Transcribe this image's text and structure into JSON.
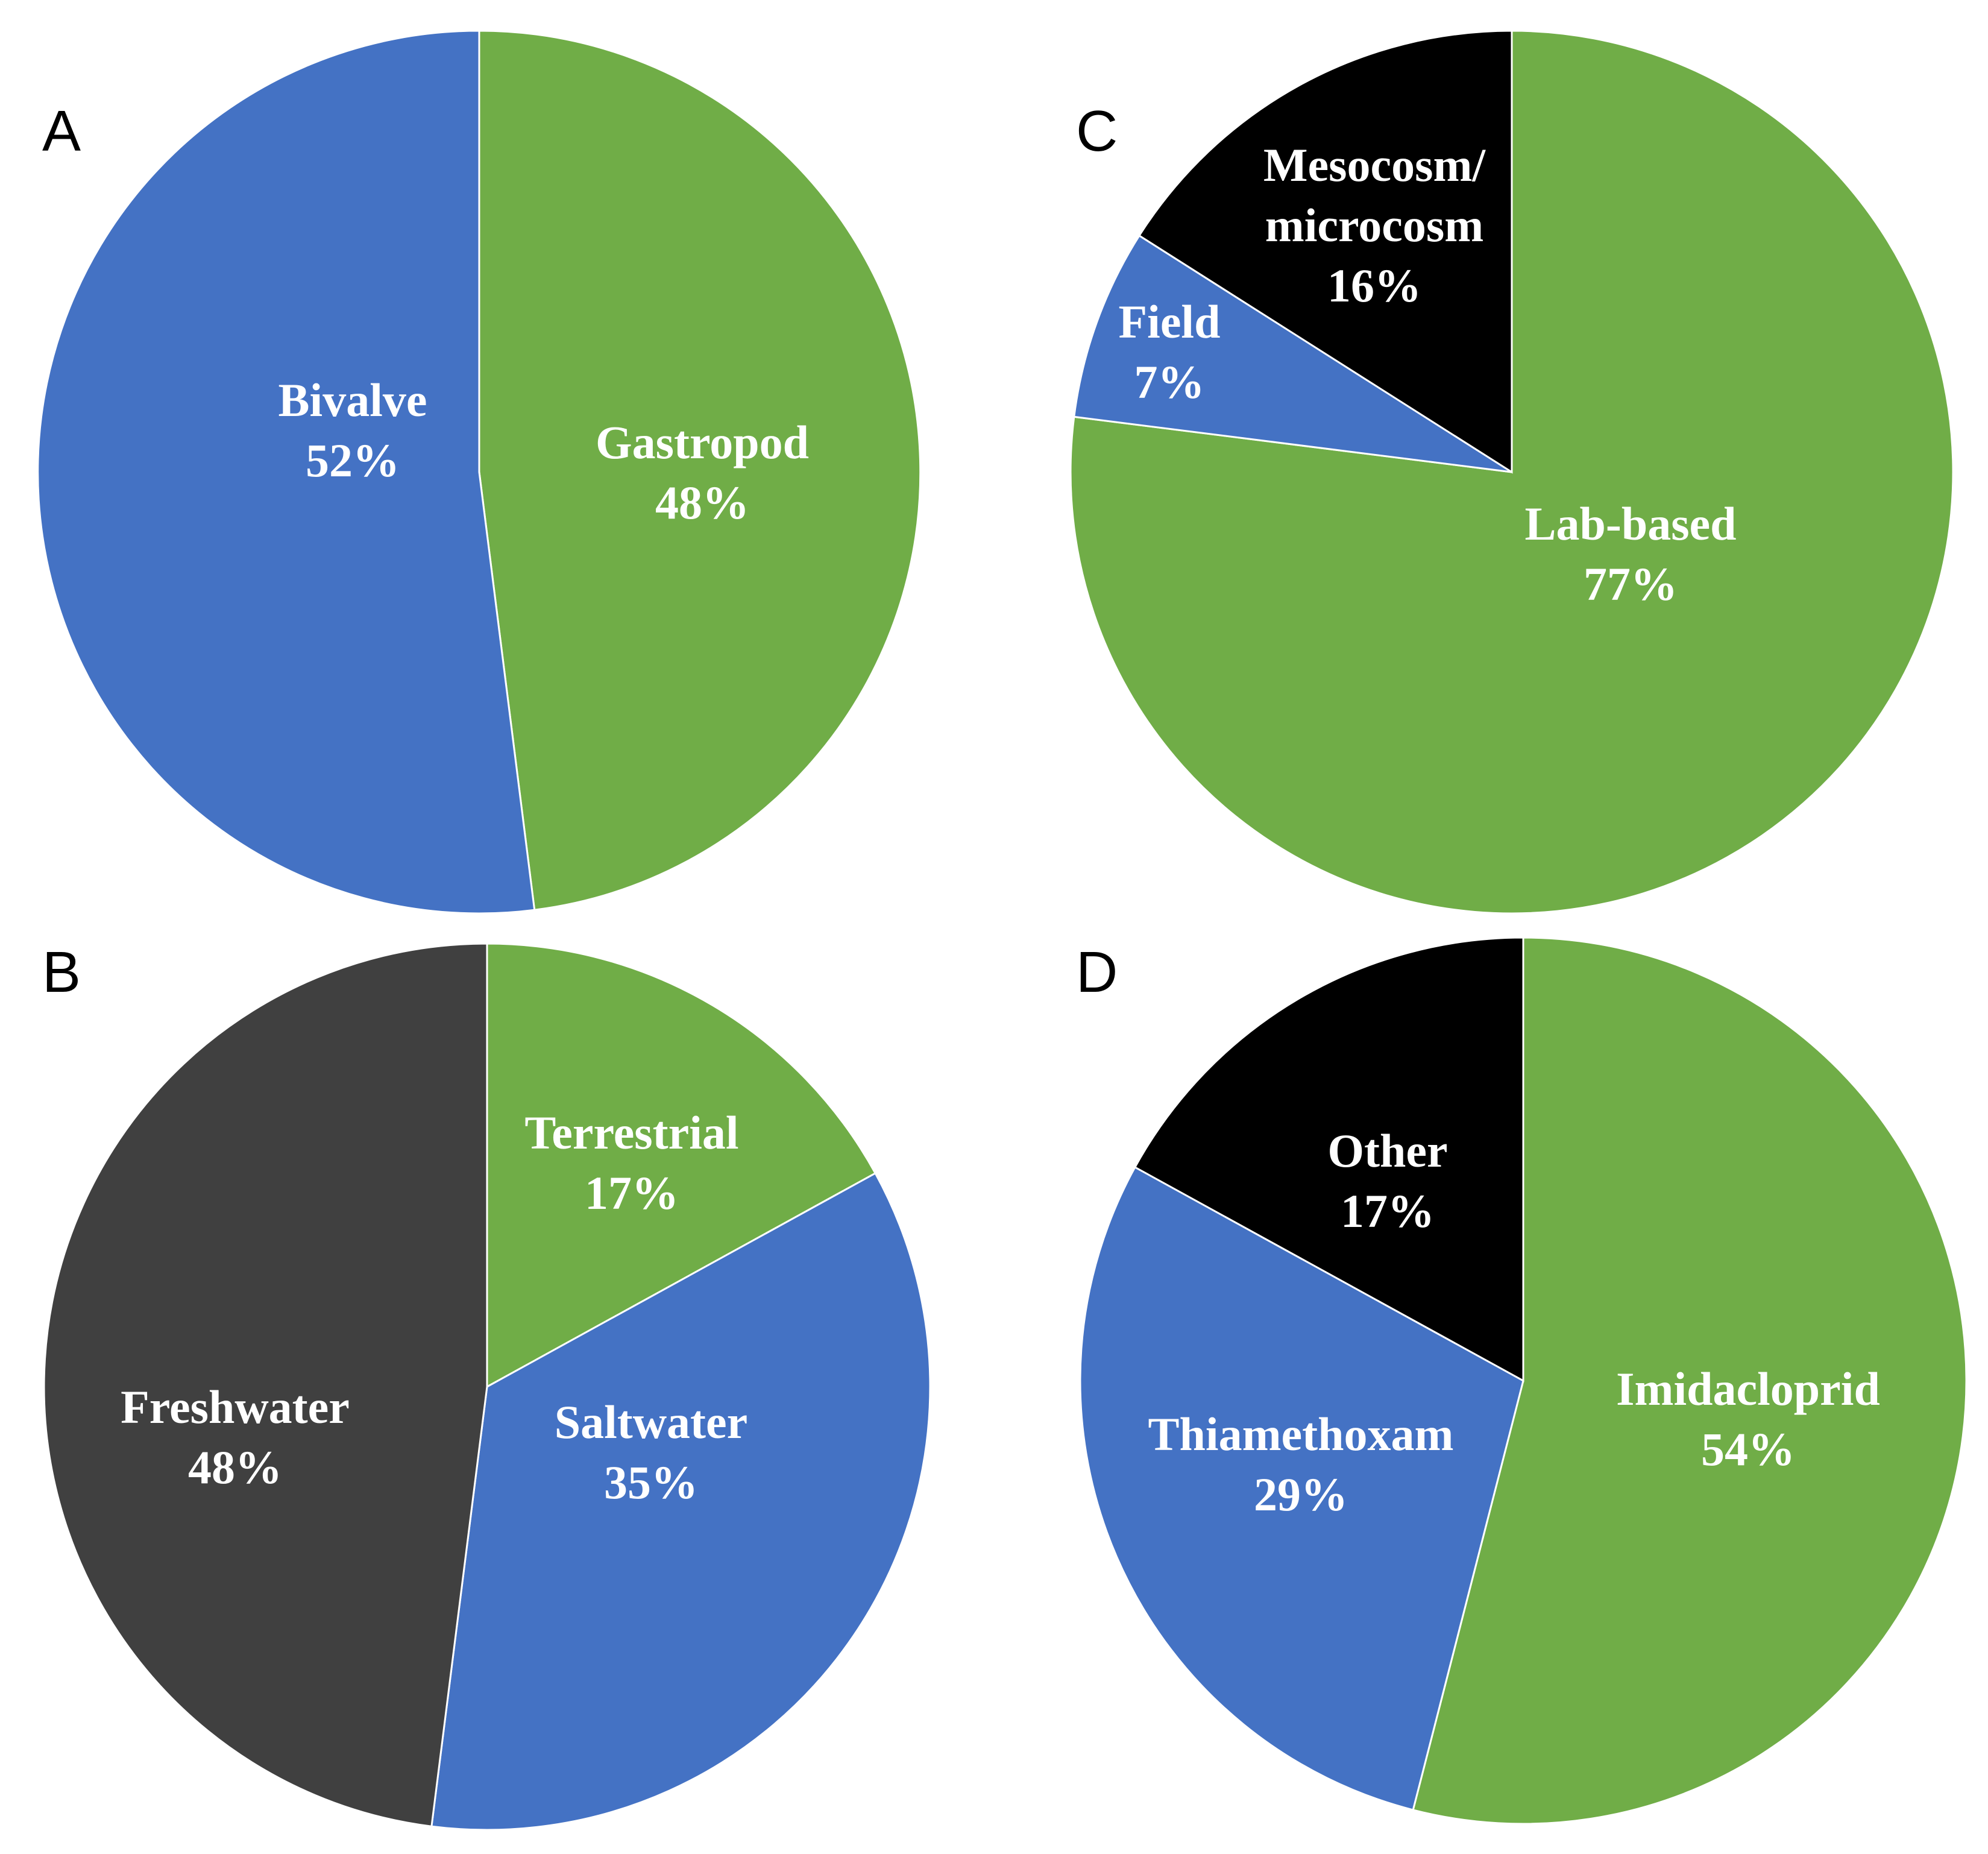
{
  "chart_data": [
    {
      "type": "pie",
      "panel": "A",
      "slices": [
        {
          "label": "Gastropod",
          "value": 48,
          "value_label": "48%",
          "color": "#70ad47"
        },
        {
          "label": "Bivalve",
          "value": 52,
          "value_label": "52%",
          "color": "#4472c4"
        }
      ]
    },
    {
      "type": "pie",
      "panel": "B",
      "slices": [
        {
          "label": "Terrestrial",
          "value": 17,
          "value_label": "17%",
          "color": "#70ad47"
        },
        {
          "label": "Saltwater",
          "value": 35,
          "value_label": "35%",
          "color": "#4472c4"
        },
        {
          "label": "Freshwater",
          "value": 48,
          "value_label": "48%",
          "color": "#404040"
        }
      ]
    },
    {
      "type": "pie",
      "panel": "C",
      "slices": [
        {
          "label": "Lab-based",
          "value": 77,
          "value_label": "77%",
          "color": "#70ad47"
        },
        {
          "label": "Field",
          "value": 7,
          "value_label": "7%",
          "color": "#4472c4"
        },
        {
          "label": "Mesocosm/ microcosm",
          "value": 16,
          "value_label": "16%",
          "color": "#000000",
          "label_lines": [
            "Mesocosm/",
            "microcosm"
          ]
        }
      ]
    },
    {
      "type": "pie",
      "panel": "D",
      "slices": [
        {
          "label": "Imidaclоprid",
          "value": 54,
          "value_label": "54%",
          "color": "#70ad47"
        },
        {
          "label": "Thiamethoxam",
          "value": 29,
          "value_label": "29%",
          "color": "#4472c4"
        },
        {
          "label": "Other",
          "value": 17,
          "value_label": "17%",
          "color": "#000000"
        }
      ]
    }
  ]
}
